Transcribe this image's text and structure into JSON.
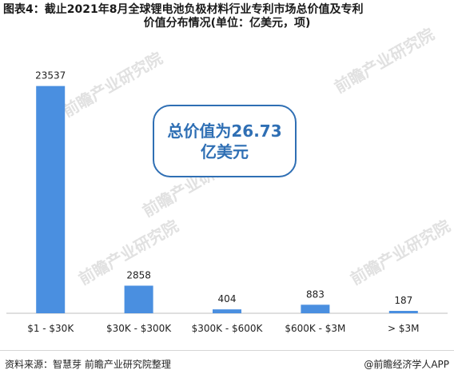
{
  "title": {
    "line1": "图表4：截止2021年8月全球锂电池负极材料行业专利市场总价值及专利",
    "line2": "价值分布情况(单位：亿美元，项)"
  },
  "callout": {
    "line1": "总价值为26.73",
    "line2": "亿美元"
  },
  "footer": {
    "source": "资料来源：智慧芽 前瞻产业研究院整理",
    "brand": "@前瞻经济学人APP"
  },
  "watermark": "前瞻产业研究院",
  "colors": {
    "bar": "#4a8fe0",
    "accent": "#2f6fb4",
    "axis": "#bfbfbf"
  },
  "chart_data": {
    "type": "bar",
    "categories": [
      "$1 - $30K",
      "$30K - $300K",
      "$300K - $600K",
      "$600K - $3M",
      "> $3M"
    ],
    "values": [
      23537,
      2858,
      404,
      883,
      187
    ],
    "title": "图表4：截止2021年8月全球锂电池负极材料行业专利市场总价值及专利价值分布情况(单位：亿美元，项)",
    "xlabel": "",
    "ylabel": "",
    "ylim": [
      0,
      24500
    ],
    "grid": false,
    "legend": "none",
    "data_labels": true
  }
}
